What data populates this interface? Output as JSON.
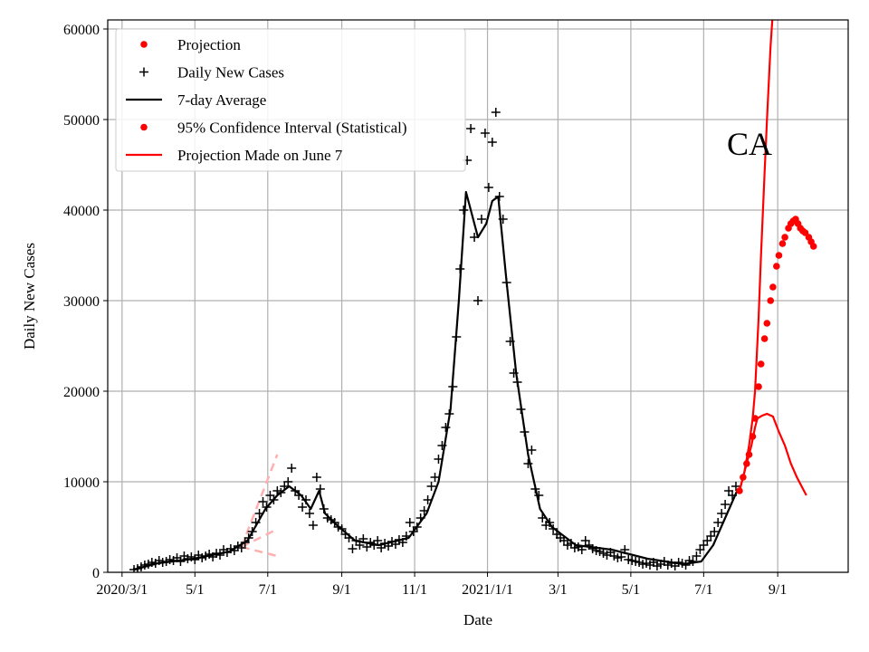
{
  "chart_data": {
    "type": "line",
    "title": "",
    "annotation": "CA",
    "xlabel": "Date",
    "ylabel": "Daily New Cases",
    "x_unit": "days since 2020/3/1",
    "xlim": [
      -12,
      608
    ],
    "ylim": [
      0,
      61000
    ],
    "grid": true,
    "legend_position": "top-left",
    "x_ticks": [
      {
        "day": 0,
        "label": "2020/3/1"
      },
      {
        "day": 61,
        "label": "5/1"
      },
      {
        "day": 122,
        "label": "7/1"
      },
      {
        "day": 184,
        "label": "9/1"
      },
      {
        "day": 245,
        "label": "11/1"
      },
      {
        "day": 306,
        "label": "2021/1/1"
      },
      {
        "day": 365,
        "label": "3/1"
      },
      {
        "day": 426,
        "label": "5/1"
      },
      {
        "day": 487,
        "label": "7/1"
      },
      {
        "day": 549,
        "label": "9/1"
      }
    ],
    "y_ticks": [
      0,
      10000,
      20000,
      30000,
      40000,
      50000,
      60000
    ],
    "legend": [
      {
        "label": "Projection",
        "style": "dot",
        "color": "#ff0000"
      },
      {
        "label": "Daily New Cases",
        "style": "plus",
        "color": "#000000"
      },
      {
        "label": "7-day Average",
        "style": "line",
        "color": "#000000"
      },
      {
        "label": "95% Confidence Interval (Statistical)",
        "style": "dot",
        "color": "#ff0000"
      },
      {
        "label": "Projection Made on June 7",
        "style": "line",
        "color": "#ff0000"
      }
    ],
    "daily_cases": {
      "start_day": 10,
      "step_days": 3,
      "values": [
        300,
        400,
        600,
        800,
        900,
        1100,
        1000,
        1300,
        1100,
        1200,
        1400,
        1300,
        1600,
        1200,
        1800,
        1500,
        1700,
        1400,
        1900,
        1600,
        1800,
        2000,
        1700,
        2100,
        1900,
        2500,
        2200,
        2600,
        2400,
        2900,
        2700,
        3300,
        3800,
        4500,
        5500,
        6500,
        7800,
        7200,
        8500,
        8000,
        9000,
        8800,
        9500,
        10000,
        11500,
        9000,
        8500,
        7200,
        8000,
        6500,
        5200,
        10500,
        9200,
        7000,
        6000,
        5800,
        5500,
        5000,
        4800,
        4200,
        3800,
        2600,
        3500,
        3000,
        3700,
        2800,
        3300,
        3000,
        3500,
        2700,
        3200,
        2900,
        3400,
        3100,
        3600,
        3300,
        4000,
        5500,
        4500,
        5000,
        6000,
        6800,
        8000,
        9500,
        10500,
        12500,
        14000,
        16000,
        17500,
        20500,
        26000,
        33500,
        40000,
        45500,
        49000,
        37000,
        30000,
        39000,
        48500,
        42500,
        47500,
        50800,
        41500,
        39000,
        32000,
        25500,
        22000,
        21000,
        18000,
        15500,
        12000,
        13500,
        9200,
        8500,
        6000,
        5200,
        5500,
        4800,
        4200,
        3800,
        3500,
        3000,
        3200,
        2700,
        2800,
        2500,
        3500,
        3000,
        2600,
        2400,
        2300,
        2100,
        1900,
        2200,
        1800,
        1600,
        1700,
        2500,
        1400,
        1300,
        1200,
        1100,
        900,
        1000,
        800,
        1100,
        700,
        900,
        1200,
        800,
        1000,
        700,
        1100,
        1000,
        800,
        1300,
        1200,
        1800,
        2500,
        3000,
        3500,
        4000,
        4500,
        5500,
        6500,
        7500,
        9000,
        8500,
        9500
      ]
    },
    "seven_day_average": [
      [
        10,
        300
      ],
      [
        30,
        1000
      ],
      [
        60,
        1500
      ],
      [
        90,
        2300
      ],
      [
        105,
        3500
      ],
      [
        120,
        7000
      ],
      [
        130,
        8500
      ],
      [
        140,
        9500
      ],
      [
        150,
        8500
      ],
      [
        158,
        7000
      ],
      [
        165,
        9000
      ],
      [
        170,
        6500
      ],
      [
        180,
        5200
      ],
      [
        195,
        3500
      ],
      [
        215,
        3000
      ],
      [
        240,
        3800
      ],
      [
        255,
        6500
      ],
      [
        265,
        10000
      ],
      [
        275,
        18000
      ],
      [
        282,
        30000
      ],
      [
        288,
        42000
      ],
      [
        292,
        40000
      ],
      [
        298,
        37000
      ],
      [
        305,
        38500
      ],
      [
        310,
        41000
      ],
      [
        315,
        41500
      ],
      [
        322,
        32000
      ],
      [
        330,
        22000
      ],
      [
        340,
        13000
      ],
      [
        350,
        7000
      ],
      [
        360,
        5000
      ],
      [
        380,
        3000
      ],
      [
        410,
        2500
      ],
      [
        440,
        1500
      ],
      [
        470,
        900
      ],
      [
        485,
        1200
      ],
      [
        495,
        3000
      ],
      [
        505,
        6000
      ],
      [
        515,
        9000
      ]
    ],
    "projection": [
      [
        517,
        9000
      ],
      [
        520,
        10500
      ],
      [
        523,
        12000
      ],
      [
        525,
        13000
      ],
      [
        528,
        15000
      ],
      [
        530,
        17000
      ],
      [
        533,
        20500
      ],
      [
        535,
        23000
      ],
      [
        538,
        25800
      ],
      [
        540,
        27500
      ],
      [
        543,
        30000
      ],
      [
        545,
        31500
      ],
      [
        548,
        33800
      ],
      [
        550,
        35000
      ],
      [
        553,
        36300
      ],
      [
        555,
        37000
      ],
      [
        558,
        38000
      ],
      [
        560,
        38500
      ],
      [
        562,
        38800
      ],
      [
        564,
        39000
      ],
      [
        566,
        38500
      ],
      [
        568,
        38000
      ],
      [
        570,
        37700
      ],
      [
        572,
        37500
      ],
      [
        575,
        37000
      ],
      [
        577,
        36500
      ],
      [
        579,
        36000
      ]
    ],
    "ci_upper": [
      [
        517,
        9000
      ],
      [
        521,
        11000
      ],
      [
        525,
        14000
      ],
      [
        528,
        17000
      ],
      [
        530,
        20000
      ],
      [
        533,
        28000
      ],
      [
        535,
        35000
      ],
      [
        538,
        44000
      ],
      [
        540,
        50000
      ],
      [
        543,
        58000
      ],
      [
        546,
        64000
      ]
    ],
    "ci_lower": [
      [
        517,
        9000
      ],
      [
        522,
        11500
      ],
      [
        527,
        14000
      ],
      [
        530,
        16000
      ],
      [
        532,
        17000
      ],
      [
        536,
        17300
      ],
      [
        540,
        17500
      ],
      [
        545,
        17200
      ],
      [
        550,
        15500
      ],
      [
        555,
        14000
      ],
      [
        560,
        12000
      ],
      [
        565,
        10500
      ],
      [
        573,
        8500
      ]
    ],
    "june7_projection": {
      "origin": [
        100,
        2800
      ],
      "upper": [
        [
          100,
          2800
        ],
        [
          130,
          13000
        ]
      ],
      "middle": [
        [
          100,
          2800
        ],
        [
          129,
          4700
        ]
      ],
      "lower": [
        [
          100,
          2800
        ],
        [
          130,
          1800
        ]
      ],
      "color": "#ffb0b0"
    }
  }
}
